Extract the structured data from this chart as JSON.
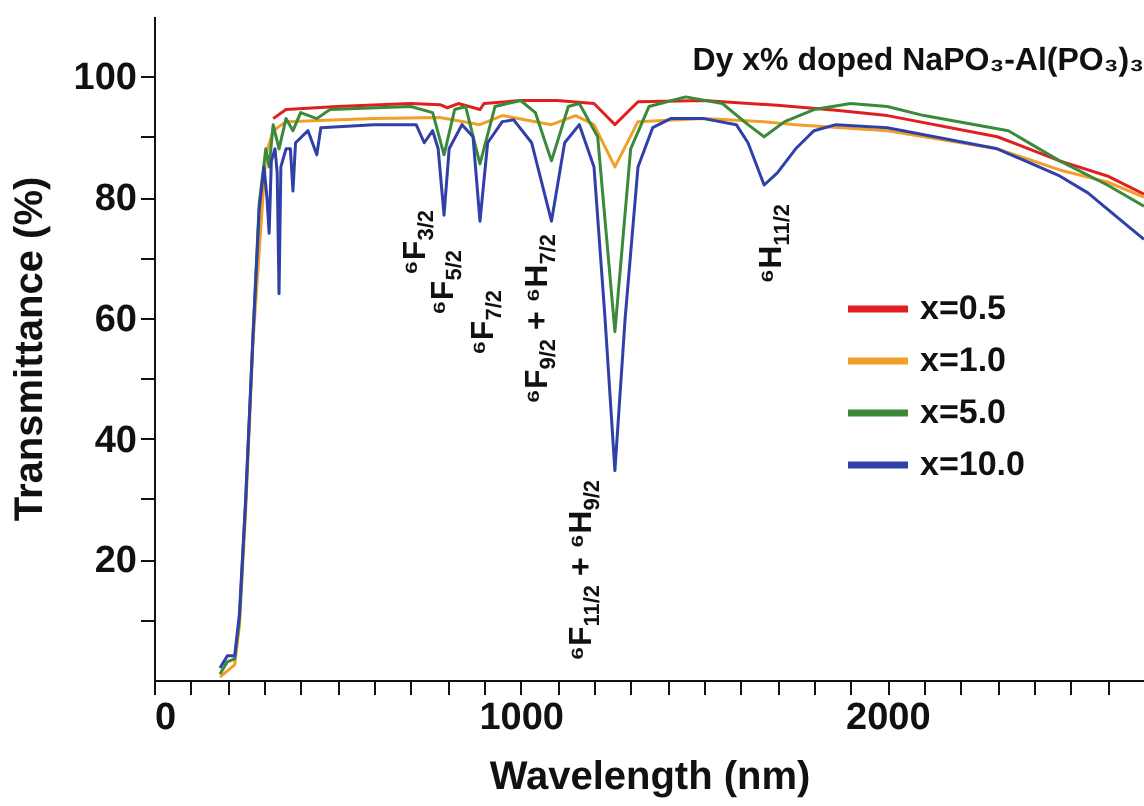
{
  "chart_data": {
    "type": "line",
    "title": "Dy x% doped NaPO₃-Al(PO₃)₃",
    "xlabel": "Wavelength (nm)",
    "ylabel": "Transmittance (%)",
    "xlim": [
      0,
      2700
    ],
    "ylim": [
      0,
      110
    ],
    "xticks": [
      0,
      {
        "value": 100,
        "label": null
      },
      {
        "value": 200,
        "label": null
      },
      {
        "value": 300,
        "label": null
      },
      {
        "value": 400,
        "label": null
      },
      {
        "value": 500,
        "label": null
      },
      {
        "value": 600,
        "label": null
      },
      {
        "value": 700,
        "label": null
      },
      {
        "value": 800,
        "label": null
      },
      {
        "value": 900,
        "label": null
      },
      1000,
      {
        "value": 1100,
        "label": null
      },
      {
        "value": 1200,
        "label": null
      },
      {
        "value": 1300,
        "label": null
      },
      {
        "value": 1400,
        "label": null
      },
      {
        "value": 1500,
        "label": null
      },
      {
        "value": 1600,
        "label": null
      },
      {
        "value": 1700,
        "label": null
      },
      {
        "value": 1800,
        "label": null
      },
      {
        "value": 1900,
        "label": null
      },
      2000,
      {
        "value": 2100,
        "label": null
      },
      {
        "value": 2200,
        "label": null
      },
      {
        "value": 2300,
        "label": null
      },
      {
        "value": 2400,
        "label": null
      },
      {
        "value": 2500,
        "label": null
      },
      {
        "value": 2600,
        "label": null
      }
    ],
    "yticks": [
      {
        "value": 10,
        "label": null
      },
      20,
      {
        "value": 30,
        "label": null
      },
      40,
      {
        "value": 50,
        "label": null
      },
      60,
      {
        "value": 70,
        "label": null
      },
      80,
      {
        "value": 90,
        "label": null
      },
      100
    ],
    "legend": "right",
    "grid": false,
    "annotations": [
      {
        "text": "⁶F$_{3/2}$",
        "x": 737,
        "y": 89
      },
      {
        "text": "⁶F$_{5/2}$",
        "x": 791,
        "y": 77
      },
      {
        "text": "⁶F$_{7/2}$",
        "x": 889,
        "y": 76
      },
      {
        "text": "⁶F$_{9/2}$ + ⁶H$_{7/2}$",
        "x": 1084,
        "y": 76
      },
      {
        "text": "⁶F$_{11/2}$ + ⁶H$_{9/2}$",
        "x": 1257,
        "y": 34.7
      },
      {
        "text": "⁶H$_{11/2}$",
        "x": 1664,
        "y": 82
      }
    ],
    "series": [
      {
        "name": "x=0.5",
        "color": "#e02020",
        "x": [
          325,
          360,
          500,
          700,
          780,
          800,
          830,
          889,
          900,
          1000,
          1100,
          1200,
          1257,
          1320,
          1500,
          1700,
          1860,
          2000,
          2300,
          2470,
          2600,
          2700
        ],
        "values": [
          93,
          94.5,
          95,
          95.5,
          95.3,
          94.8,
          95.5,
          94.5,
          95.5,
          96,
          96,
          95.5,
          92,
          95.8,
          96,
          95.2,
          94.4,
          93.5,
          90,
          86,
          83.5,
          80.5
        ]
      },
      {
        "name": "x=1.0",
        "color": "#f0a028",
        "x": [
          180,
          200,
          220,
          233,
          250,
          270,
          305,
          325,
          360,
          600,
          780,
          889,
          950,
          1084,
          1150,
          1200,
          1257,
          1320,
          1500,
          1664,
          1750,
          2000,
          2300,
          2470,
          2600,
          2700
        ],
        "values": [
          0.5,
          1.5,
          2.5,
          9,
          28,
          56,
          87,
          91,
          92.5,
          93,
          93.2,
          92,
          93.5,
          92,
          93.5,
          92,
          85,
          92.5,
          93,
          92.5,
          92,
          91,
          88,
          84.5,
          82.5,
          80
        ]
      },
      {
        "name": "x=5.0",
        "color": "#3a8a3a",
        "x": [
          180,
          200,
          220,
          233,
          250,
          270,
          287,
          305,
          314,
          325,
          341,
          360,
          379,
          400,
          444,
          480,
          700,
          760,
          791,
          820,
          850,
          889,
          930,
          1000,
          1040,
          1084,
          1130,
          1160,
          1210,
          1257,
          1300,
          1350,
          1450,
          1550,
          1620,
          1664,
          1720,
          1800,
          1900,
          2000,
          2100,
          2330,
          2470,
          2600,
          2700
        ],
        "values": [
          1,
          3,
          3.5,
          10,
          29.5,
          57,
          79,
          88,
          85,
          92,
          88,
          93,
          91,
          94,
          93,
          94.5,
          95,
          94,
          87,
          94.5,
          95,
          85.5,
          95,
          96,
          94,
          86,
          95,
          95.5,
          90,
          57.7,
          88,
          95,
          96.6,
          95.5,
          92,
          90,
          92.5,
          94.5,
          95.5,
          95,
          93.5,
          91,
          86,
          82,
          78.5
        ]
      },
      {
        "name": "x=10.0",
        "color": "#3040a8",
        "x": [
          180,
          200,
          220,
          233,
          250,
          270,
          287,
          300,
          308,
          314,
          320,
          330,
          336,
          341,
          346,
          360,
          372,
          379,
          386,
          420,
          444,
          455,
          600,
          715,
          737,
          760,
          775,
          791,
          805,
          840,
          870,
          889,
          910,
          950,
          981,
          1030,
          1084,
          1120,
          1160,
          1200,
          1230,
          1257,
          1285,
          1320,
          1360,
          1409,
          1500,
          1588,
          1620,
          1664,
          1700,
          1750,
          1800,
          1860,
          2000,
          2300,
          2470,
          2547,
          2620,
          2700
        ],
        "values": [
          2,
          4,
          4,
          11,
          30,
          57,
          78,
          85,
          80,
          74,
          86,
          88,
          84,
          64,
          85,
          88,
          88,
          81,
          89,
          91,
          87,
          91.5,
          92,
          92,
          89,
          91,
          88,
          77,
          88,
          92,
          90,
          76,
          89,
          92.5,
          92.8,
          89,
          76,
          89,
          92,
          85,
          60,
          34.7,
          60,
          85,
          91.5,
          93,
          93,
          92,
          89,
          82,
          84,
          88,
          91,
          92,
          91.5,
          88,
          83.5,
          80.7,
          77,
          73
        ]
      }
    ]
  }
}
